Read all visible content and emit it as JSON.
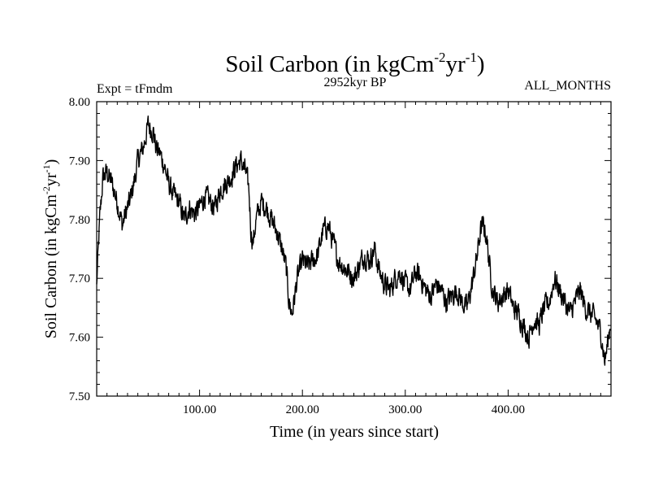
{
  "chart_data": {
    "type": "line",
    "title_main": "Soil Carbon (in kgCm",
    "title_sup1": "-2",
    "title_mid": "yr",
    "title_sup2": "-1",
    "title_end": ")",
    "subtitle_left": "Expt = tFmdm",
    "subtitle_center": "2952kyr BP",
    "subtitle_right": "ALL_MONTHS",
    "xlabel": "Time (in years since start)",
    "ylabel_main": "Soil Carbon (in kgCm",
    "ylabel_sup1": "-2",
    "ylabel_mid": "yr",
    "ylabel_sup2": "-1",
    "ylabel_end": ")",
    "xlim": [
      0,
      500
    ],
    "ylim": [
      7.5,
      8.0
    ],
    "x_ticks": [
      100,
      200,
      300,
      400
    ],
    "x_tick_labels": [
      "100.00",
      "200.00",
      "300.00",
      "400.00"
    ],
    "y_ticks": [
      7.5,
      7.6,
      7.7,
      7.8,
      7.9,
      8.0
    ],
    "y_tick_labels": [
      "7.50",
      "7.60",
      "7.70",
      "7.80",
      "7.90",
      "8.00"
    ],
    "series": [
      {
        "name": "Soil Carbon",
        "color": "#000000",
        "anchors_x": [
          0,
          3,
          6,
          10,
          15,
          20,
          25,
          28,
          32,
          36,
          40,
          45,
          50,
          55,
          58,
          62,
          66,
          70,
          75,
          80,
          85,
          90,
          95,
          100,
          105,
          110,
          115,
          120,
          125,
          130,
          135,
          140,
          145,
          148,
          150,
          152,
          155,
          160,
          165,
          170,
          175,
          180,
          184,
          187,
          190,
          195,
          200,
          205,
          210,
          215,
          220,
          225,
          230,
          235,
          240,
          245,
          250,
          255,
          260,
          265,
          270,
          275,
          280,
          285,
          290,
          295,
          300,
          305,
          310,
          315,
          320,
          325,
          330,
          335,
          340,
          345,
          350,
          355,
          360,
          365,
          370,
          373,
          376,
          379,
          382,
          385,
          390,
          395,
          400,
          405,
          410,
          415,
          420,
          425,
          430,
          435,
          440,
          445,
          450,
          455,
          460,
          465,
          470,
          475,
          480,
          485,
          490,
          494,
          496,
          500
        ],
        "anchors_y": [
          7.69,
          7.8,
          7.87,
          7.88,
          7.86,
          7.83,
          7.79,
          7.81,
          7.83,
          7.86,
          7.9,
          7.92,
          7.96,
          7.95,
          7.92,
          7.91,
          7.89,
          7.86,
          7.84,
          7.83,
          7.8,
          7.82,
          7.81,
          7.82,
          7.84,
          7.83,
          7.82,
          7.85,
          7.86,
          7.87,
          7.89,
          7.9,
          7.88,
          7.85,
          7.78,
          7.76,
          7.8,
          7.83,
          7.82,
          7.8,
          7.78,
          7.75,
          7.72,
          7.66,
          7.64,
          7.7,
          7.73,
          7.72,
          7.73,
          7.74,
          7.78,
          7.79,
          7.76,
          7.73,
          7.72,
          7.71,
          7.7,
          7.72,
          7.74,
          7.73,
          7.75,
          7.71,
          7.69,
          7.68,
          7.7,
          7.71,
          7.69,
          7.68,
          7.71,
          7.7,
          7.68,
          7.67,
          7.69,
          7.68,
          7.66,
          7.67,
          7.68,
          7.66,
          7.65,
          7.69,
          7.74,
          7.78,
          7.79,
          7.77,
          7.72,
          7.68,
          7.66,
          7.67,
          7.68,
          7.65,
          7.64,
          7.62,
          7.6,
          7.63,
          7.62,
          7.65,
          7.66,
          7.7,
          7.68,
          7.66,
          7.64,
          7.66,
          7.68,
          7.65,
          7.64,
          7.63,
          7.61,
          7.56,
          7.58,
          7.63
        ],
        "noise_amplitude": 0.016,
        "samples": 1500
      }
    ]
  }
}
